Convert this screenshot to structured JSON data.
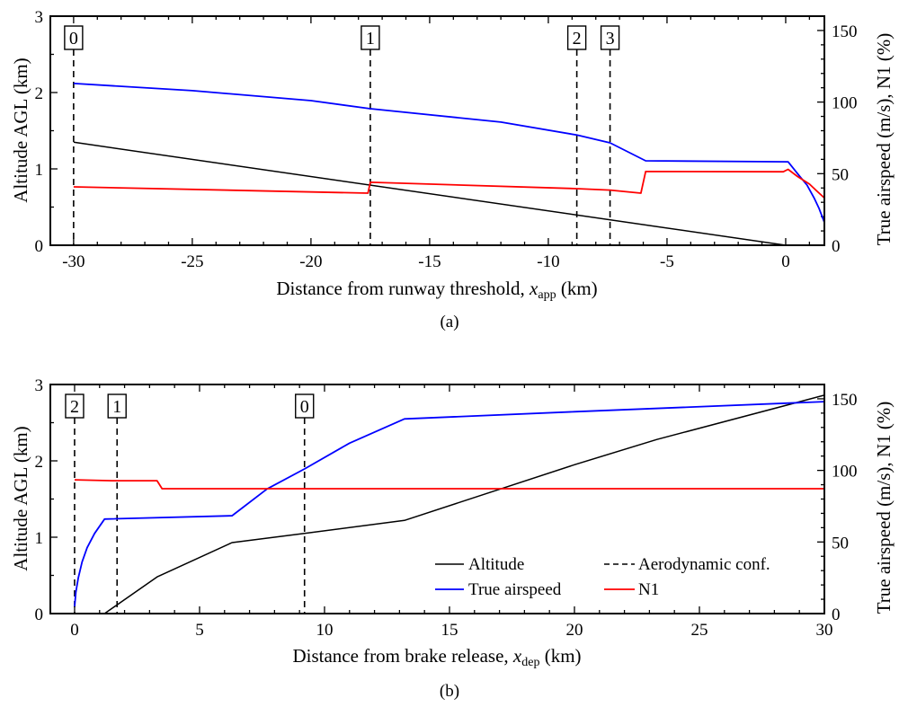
{
  "chart_data": [
    {
      "type": "line",
      "caption": "(a)",
      "xlabel": {
        "prefix": "Distance from runway threshold, ",
        "var": "x",
        "sub": "app",
        "suffix": " (km)"
      },
      "ylabel": "Altitude AGL (km)",
      "y2label": "True airspeed (m/s), N1 (%)",
      "xlim": [
        -30.98,
        1.63
      ],
      "ylim": [
        0,
        3
      ],
      "y2lim": [
        0,
        160
      ],
      "xticks": [
        -30,
        -25,
        -20,
        -15,
        -10,
        -5,
        0
      ],
      "xtick_labels": [
        "-30",
        "-25",
        "-20",
        "-15",
        "-10",
        "-5",
        "0"
      ],
      "xminor": 1,
      "yticks": [
        0,
        1,
        2,
        3
      ],
      "ytick_labels": [
        "0",
        "1",
        "2",
        "3"
      ],
      "yminor": 0.5,
      "y2ticks": [
        0,
        50,
        100,
        150
      ],
      "y2tick_labels": [
        "0",
        "50",
        "100",
        "150"
      ],
      "y2minor": 10,
      "markers": [
        {
          "x": -30,
          "label": "0"
        },
        {
          "x": -17.5,
          "label": "1"
        },
        {
          "x": -8.8,
          "label": "2"
        },
        {
          "x": -7.4,
          "label": "3"
        }
      ],
      "series": [
        {
          "name": "Altitude",
          "axis": "left",
          "color": "#000000",
          "points": [
            [
              -30,
              1.35
            ],
            [
              0,
              0
            ]
          ]
        },
        {
          "name": "True airspeed",
          "axis": "right",
          "color": "#0000ff",
          "points": [
            [
              -30,
              113
            ],
            [
              -25,
              108
            ],
            [
              -20,
              101
            ],
            [
              -17.5,
              95.4
            ],
            [
              -12,
              86
            ],
            [
              -8.8,
              77
            ],
            [
              -7.4,
              71.5
            ],
            [
              -5.9,
              59
            ],
            [
              0.1,
              58.3
            ],
            [
              0.5,
              50
            ],
            [
              0.9,
              42
            ],
            [
              1.2,
              33
            ],
            [
              1.4,
              26
            ],
            [
              1.63,
              16
            ]
          ]
        },
        {
          "name": "N1",
          "axis": "right",
          "color": "#ff0000",
          "points": [
            [
              -30,
              40.8
            ],
            [
              -17.6,
              36.4
            ],
            [
              -17.5,
              44
            ],
            [
              -8.8,
              39.5
            ],
            [
              -7.4,
              38.5
            ],
            [
              -6.1,
              36.4
            ],
            [
              -5.9,
              51.5
            ],
            [
              -0.1,
              51.3
            ],
            [
              0.1,
              53
            ],
            [
              0.5,
              48
            ],
            [
              1.0,
              42.7
            ],
            [
              1.3,
              38
            ],
            [
              1.63,
              33
            ]
          ]
        }
      ]
    },
    {
      "type": "line",
      "caption": "(b)",
      "xlabel": {
        "prefix": "Distance from brake release, ",
        "var": "x",
        "sub": "dep",
        "suffix": " (km)"
      },
      "ylabel": "Altitude AGL (km)",
      "y2label": "True airspeed (m/s), N1 (%)",
      "xlim": [
        -0.97,
        30
      ],
      "ylim": [
        0,
        3
      ],
      "y2lim": [
        0,
        160
      ],
      "xticks": [
        0,
        5,
        10,
        15,
        20,
        25,
        30
      ],
      "xtick_labels": [
        "0",
        "5",
        "10",
        "15",
        "20",
        "25",
        "30"
      ],
      "xminor": 1,
      "yticks": [
        0,
        1,
        2,
        3
      ],
      "ytick_labels": [
        "0",
        "1",
        "2",
        "3"
      ],
      "yminor": 0.5,
      "y2ticks": [
        0,
        50,
        100,
        150
      ],
      "y2tick_labels": [
        "0",
        "50",
        "100",
        "150"
      ],
      "y2minor": 10,
      "markers": [
        {
          "x": 0,
          "label": "2"
        },
        {
          "x": 1.7,
          "label": "1"
        },
        {
          "x": 9.2,
          "label": "0"
        }
      ],
      "series": [
        {
          "name": "Altitude",
          "axis": "left",
          "color": "#000000",
          "points": [
            [
              0,
              0
            ],
            [
              1.2,
              0
            ],
            [
              3.3,
              0.48
            ],
            [
              6.3,
              0.93
            ],
            [
              9.2,
              1.05
            ],
            [
              13.2,
              1.22
            ],
            [
              20,
              1.95
            ],
            [
              23.3,
              2.28
            ],
            [
              30,
              2.86
            ]
          ]
        },
        {
          "name": "True airspeed",
          "axis": "right",
          "color": "#0000ff",
          "points": [
            [
              0,
              5
            ],
            [
              0.05,
              15
            ],
            [
              0.15,
              25
            ],
            [
              0.3,
              36
            ],
            [
              0.5,
              46
            ],
            [
              0.8,
              56
            ],
            [
              1.2,
              66
            ],
            [
              6.3,
              68.3
            ],
            [
              7.7,
              87
            ],
            [
              9.2,
              101
            ],
            [
              11,
              119
            ],
            [
              13.2,
              136
            ],
            [
              20,
              141
            ],
            [
              30,
              148
            ]
          ]
        },
        {
          "name": "N1",
          "axis": "right",
          "color": "#ff0000",
          "points": [
            [
              0,
              93.4
            ],
            [
              1.5,
              92.8
            ],
            [
              3.3,
              92.8
            ],
            [
              3.5,
              87.2
            ],
            [
              30,
              87.2
            ]
          ]
        }
      ],
      "legend": {
        "position": "bottom-right",
        "entries": [
          {
            "label": "Altitude",
            "style": "solid",
            "color": "#000000"
          },
          {
            "label": "Aerodynamic conf.",
            "style": "dashed",
            "color": "#000000"
          },
          {
            "label": "True airspeed",
            "style": "solid",
            "color": "#0000ff"
          },
          {
            "label": "N1",
            "style": "solid",
            "color": "#ff0000"
          }
        ]
      }
    }
  ]
}
